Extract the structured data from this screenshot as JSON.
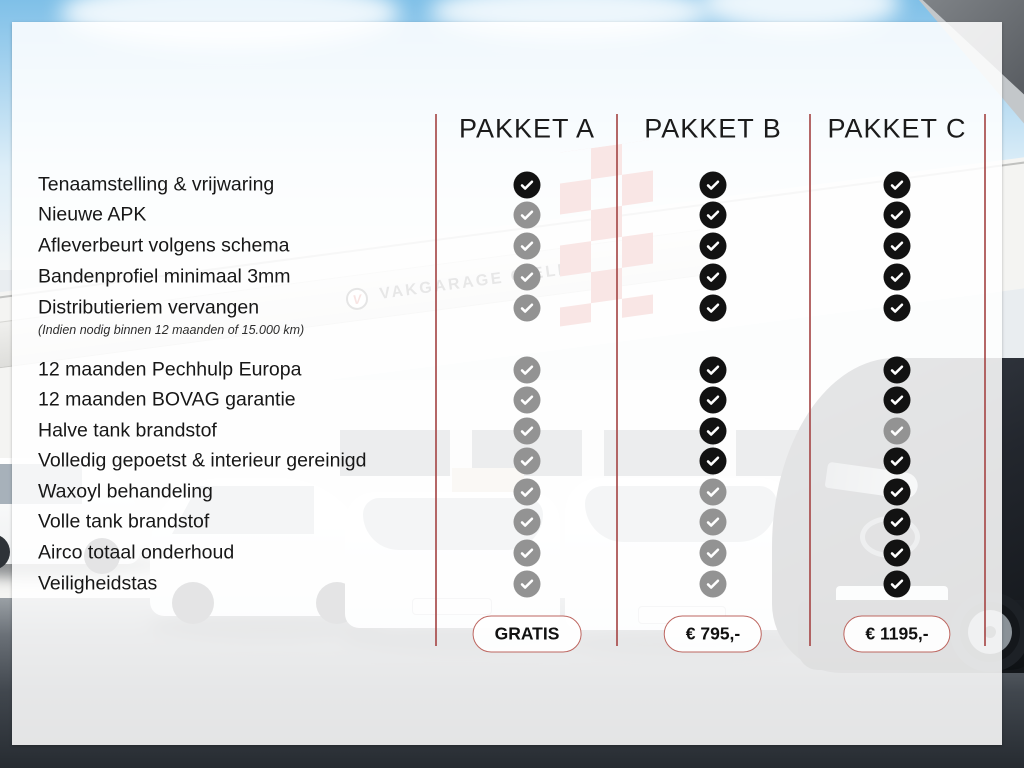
{
  "header": {
    "columns": [
      "PAKKET A",
      "PAKKET B",
      "PAKKET C"
    ]
  },
  "background": {
    "brand_text": "VAKGARAGE GIELEN",
    "brand_logo_letter": "V"
  },
  "colors": {
    "accent_line": "#a84c4c",
    "pill_border": "#bd6660",
    "check_included": "#121212",
    "check_excluded": "#939393",
    "flag_red": "#cc4038"
  },
  "chart_data": {
    "type": "table",
    "columns": [
      "PAKKET A",
      "PAKKET B",
      "PAKKET C"
    ],
    "rows": [
      {
        "feature": "Tenaamstelling & vrijwaring",
        "included": [
          true,
          true,
          true
        ]
      },
      {
        "feature": "Nieuwe APK",
        "included": [
          false,
          true,
          true
        ]
      },
      {
        "feature": "Afleverbeurt volgens schema",
        "included": [
          false,
          true,
          true
        ]
      },
      {
        "feature": "Bandenprofiel minimaal 3mm",
        "included": [
          false,
          true,
          true
        ]
      },
      {
        "feature": "Distributieriem vervangen",
        "note": "(Indien nodig binnen 12 maanden of 15.000 km)",
        "included": [
          false,
          true,
          true
        ]
      },
      {
        "feature": "12 maanden Pechhulp Europa",
        "included": [
          false,
          true,
          true
        ]
      },
      {
        "feature": "12 maanden BOVAG garantie",
        "included": [
          false,
          true,
          true
        ]
      },
      {
        "feature": "Halve tank brandstof",
        "included": [
          false,
          true,
          false
        ]
      },
      {
        "feature": "Volledig gepoetst & interieur gereinigd",
        "included": [
          false,
          true,
          true
        ]
      },
      {
        "feature": "Waxoyl behandeling",
        "included": [
          false,
          false,
          true
        ]
      },
      {
        "feature": "Volle tank brandstof",
        "included": [
          false,
          false,
          true
        ]
      },
      {
        "feature": "Airco totaal onderhoud",
        "included": [
          false,
          false,
          true
        ]
      },
      {
        "feature": "Veiligheidstas",
        "included": [
          false,
          false,
          true
        ]
      }
    ],
    "prices_row": [
      "GRATIS",
      "€ 795,-",
      "€ 1195,-"
    ]
  }
}
